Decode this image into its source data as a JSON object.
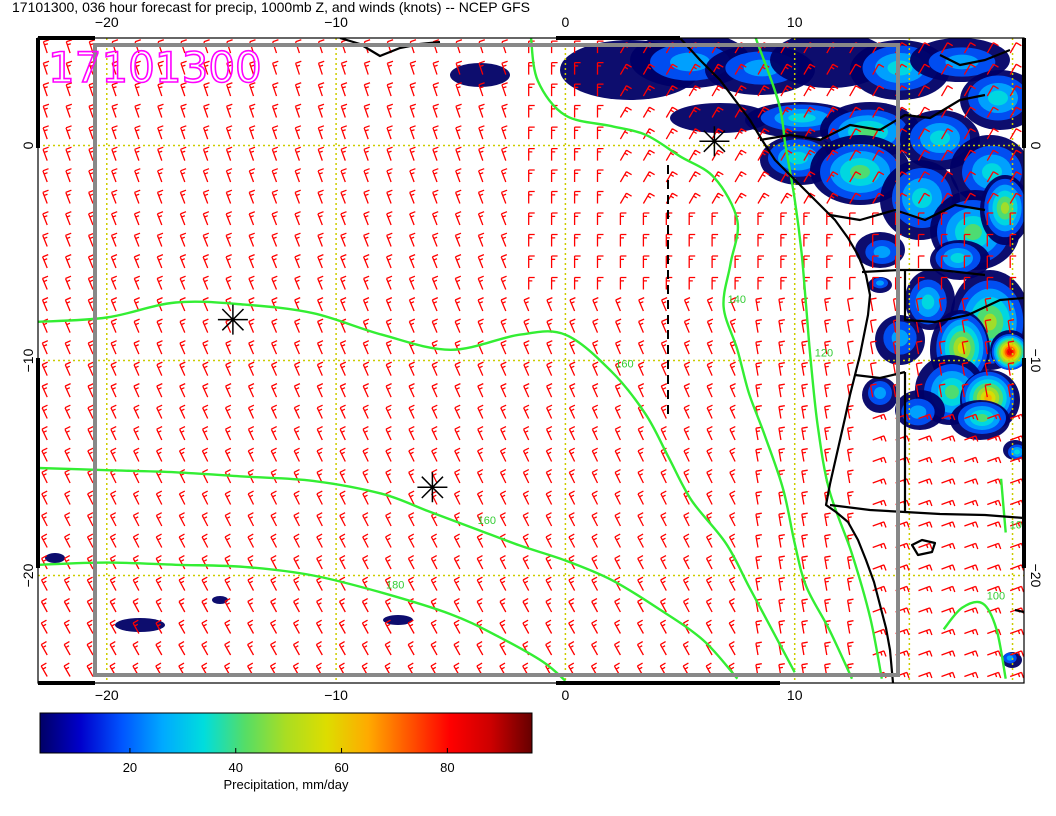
{
  "title": "17101300, 036 hour forecast for precip, 1000mb Z, and winds (knots) -- NCEP GFS",
  "stamp": "17101300",
  "map": {
    "lon_range": [
      -23,
      20
    ],
    "lat_range": [
      -25,
      5
    ],
    "x_ticks": [
      {
        "value": -20,
        "label": "−20"
      },
      {
        "value": -10,
        "label": "−10"
      },
      {
        "value": 0,
        "label": "0"
      },
      {
        "value": 10,
        "label": "10"
      }
    ],
    "y_ticks": [
      {
        "value": 0,
        "label": "0"
      },
      {
        "value": -10,
        "label": "−10"
      },
      {
        "value": -20,
        "label": "−20"
      }
    ],
    "height_contours": [
      {
        "level": 160,
        "label": "160",
        "points": [
          [
            -23,
            -8.2
          ],
          [
            -20,
            -8
          ],
          [
            -17,
            -7.3
          ],
          [
            -14,
            -7.4
          ],
          [
            -11,
            -7.8
          ],
          [
            -8,
            -8.8
          ],
          [
            -5,
            -9.5
          ],
          [
            -2,
            -8.8
          ],
          [
            0,
            -8.8
          ],
          [
            2,
            -10.5
          ],
          [
            3.5,
            -12.5
          ],
          [
            4.5,
            -14.5
          ],
          [
            5.5,
            -16.5
          ],
          [
            7,
            -18.5
          ],
          [
            8,
            -20.5
          ],
          [
            9,
            -22.5
          ],
          [
            10,
            -24.5
          ]
        ]
      },
      {
        "level": 160,
        "label": "160",
        "points": [
          [
            -23,
            -15
          ],
          [
            -20,
            -15.1
          ],
          [
            -17,
            -15.2
          ],
          [
            -14,
            -15.4
          ],
          [
            -11,
            -15.6
          ],
          [
            -8,
            -16.2
          ],
          [
            -6,
            -17
          ],
          [
            -4,
            -17.8
          ],
          [
            -2,
            -18.6
          ],
          [
            0,
            -19.3
          ],
          [
            2,
            -20.2
          ],
          [
            4,
            -21.5
          ],
          [
            6,
            -23
          ],
          [
            7.5,
            -24.8
          ]
        ]
      },
      {
        "level": 180,
        "label": "180",
        "points": [
          [
            -23,
            -19.5
          ],
          [
            -20,
            -19.4
          ],
          [
            -17,
            -19.5
          ],
          [
            -14,
            -19.6
          ],
          [
            -11,
            -20
          ],
          [
            -8,
            -20.8
          ],
          [
            -5,
            -21.8
          ],
          [
            -3,
            -22.8
          ],
          [
            -1,
            -24
          ],
          [
            0,
            -24.9
          ]
        ]
      },
      {
        "level": 140,
        "label": "140",
        "points": [
          [
            -1.5,
            5
          ],
          [
            -1.2,
            3
          ],
          [
            0,
            1.4
          ],
          [
            2,
            0.9
          ],
          [
            3.5,
            0.5
          ],
          [
            5,
            -0.5
          ],
          [
            6.5,
            -1.5
          ],
          [
            7.5,
            -3.5
          ],
          [
            7.2,
            -5.5
          ],
          [
            6.9,
            -7.5
          ],
          [
            7.5,
            -9.5
          ],
          [
            8,
            -11.5
          ],
          [
            8.7,
            -13.5
          ],
          [
            9.5,
            -16
          ],
          [
            10,
            -18.5
          ],
          [
            10.5,
            -20.5
          ],
          [
            11.5,
            -22.5
          ],
          [
            12.5,
            -24.8
          ]
        ]
      },
      {
        "level": 120,
        "label": "120",
        "points": [
          [
            8.3,
            5
          ],
          [
            9.3,
            2
          ],
          [
            9.6,
            0
          ],
          [
            10,
            -2.5
          ],
          [
            10.3,
            -5
          ],
          [
            10.5,
            -7.5
          ],
          [
            10.7,
            -10
          ],
          [
            11,
            -13
          ],
          [
            11.5,
            -16
          ],
          [
            12.5,
            -19
          ],
          [
            13.3,
            -22
          ],
          [
            13.8,
            -24.8
          ]
        ]
      },
      {
        "level": 100,
        "label": "100",
        "points": [
          [
            16.5,
            -22.5
          ],
          [
            17.3,
            -21.5
          ],
          [
            18.2,
            -21.3
          ],
          [
            18.8,
            -22.5
          ],
          [
            19.2,
            -24.8
          ]
        ]
      },
      {
        "level": 100,
        "label": "100",
        "points": [
          [
            19,
            -15.5
          ],
          [
            19.2,
            -18
          ]
        ]
      }
    ],
    "pressure_centers": [
      {
        "lon": -14.5,
        "lat": -8.1
      },
      {
        "lon": -5.8,
        "lat": -15.9
      },
      {
        "lon": 6.5,
        "lat": 0.2
      }
    ],
    "colors": {
      "wind_barbs": "#ff0000",
      "height_contours": "#33ee33",
      "coastline": "#000000",
      "graticule": "#cccc00",
      "frame": "#888888",
      "stamp": "#ff00ff"
    }
  },
  "colorbar": {
    "label": "Precipitation, mm/day",
    "range": [
      3,
      96
    ],
    "ticks": [
      {
        "value": 20,
        "label": "20"
      },
      {
        "value": 40,
        "label": "40"
      },
      {
        "value": 60,
        "label": "60"
      },
      {
        "value": 80,
        "label": "80"
      }
    ],
    "colors": [
      "#000066",
      "#0000cc",
      "#0055ff",
      "#00aaff",
      "#00dddd",
      "#55dd66",
      "#aadd22",
      "#dddd00",
      "#ffaa00",
      "#ff5500",
      "#ff0000",
      "#cc0000",
      "#660000"
    ]
  }
}
